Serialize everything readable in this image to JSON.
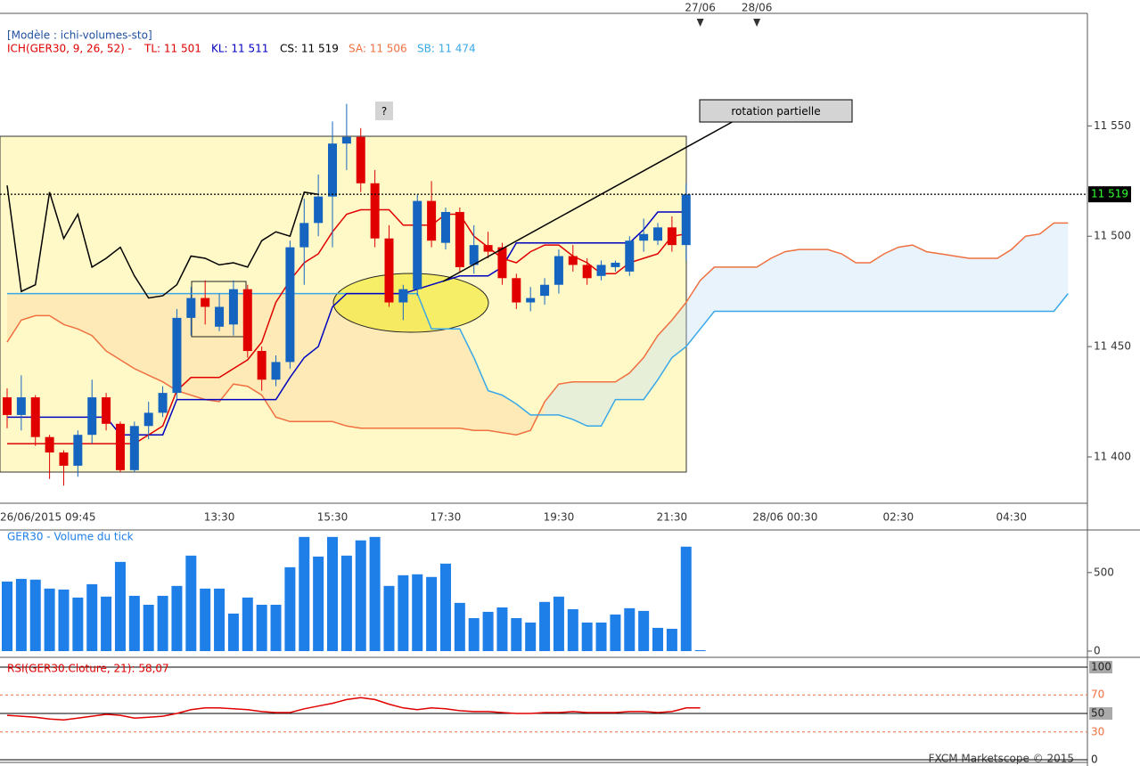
{
  "chart_data": [
    {
      "type": "candlestick",
      "title": "[Modèle : ichi-volumes-sto]",
      "subtitle": "ICH(GER30, 9, 26, 52) -",
      "categories": [
        "26/06/2015 09:45",
        null,
        null,
        null,
        null,
        null,
        null,
        null,
        null,
        null,
        null,
        null,
        null,
        null,
        null,
        "13:30",
        null,
        null,
        null,
        null,
        null,
        null,
        null,
        "15:30",
        null,
        null,
        null,
        null,
        null,
        null,
        null,
        "17:30",
        null,
        null,
        null,
        null,
        null,
        null,
        null,
        "19:30",
        null,
        null,
        null,
        null,
        null,
        null,
        null,
        "21:30",
        null,
        null,
        null,
        null,
        null,
        null,
        null,
        "28/06 00:30",
        null,
        null,
        null,
        null,
        null,
        null,
        null,
        "02:30",
        null,
        null,
        null,
        null,
        null,
        null,
        null,
        "04:30",
        null,
        null,
        null,
        null
      ],
      "top_categories": [
        null,
        null,
        null,
        null,
        null,
        null,
        null,
        null,
        null,
        null,
        null,
        null,
        null,
        null,
        null,
        null,
        null,
        null,
        null,
        null,
        null,
        null,
        null,
        null,
        null,
        null,
        null,
        null,
        null,
        null,
        null,
        null,
        null,
        null,
        null,
        null,
        null,
        null,
        null,
        null,
        null,
        null,
        null,
        null,
        null,
        null,
        null,
        null,
        null,
        "27/06",
        null,
        null,
        null,
        "28/06",
        null,
        null,
        null,
        null,
        null,
        null,
        null,
        null,
        null,
        null,
        null,
        null,
        null,
        null,
        null,
        null,
        null,
        null,
        null,
        null,
        null,
        null
      ],
      "open": [
        11427,
        11419,
        11427,
        11409,
        11402,
        11396,
        11410,
        11427,
        11415,
        11394,
        11414,
        11420,
        11429,
        11463,
        11472,
        11459,
        11460,
        11476,
        11448,
        11435,
        11443,
        11495,
        11506,
        11518,
        11542,
        11545,
        11524,
        11499,
        11470,
        11476,
        11516,
        11497,
        11511,
        11487,
        11496,
        11495,
        11481,
        11470,
        11473,
        11478,
        11491,
        11487,
        11482,
        11486,
        11484,
        11498,
        11498,
        11504,
        11496,
        null,
        null,
        null,
        null,
        null,
        null,
        null,
        null,
        null,
        null,
        null,
        null,
        null,
        null,
        null,
        null,
        null,
        null,
        null,
        null,
        null,
        null,
        null,
        null,
        null,
        null,
        null
      ],
      "high": [
        11431,
        11437,
        11428,
        11410,
        11403,
        11412,
        11435,
        11429,
        11416,
        11416,
        11425,
        11432,
        11467,
        11477,
        11480,
        11474,
        11480,
        11478,
        11450,
        11446,
        11498,
        11517,
        11528,
        11552,
        11560,
        11549,
        11530,
        11505,
        11478,
        11519,
        11525,
        11513,
        11513,
        11505,
        11502,
        11497,
        11483,
        11477,
        11481,
        11494,
        11496,
        11490,
        11489,
        11489,
        11500,
        11508,
        11506,
        11509,
        11524,
        null,
        null,
        null,
        null,
        null,
        null,
        null,
        null,
        null,
        null,
        null,
        null,
        null,
        null,
        null,
        null,
        null,
        null,
        null,
        null,
        null,
        null,
        null,
        null,
        null,
        null,
        null
      ],
      "low": [
        11413,
        11412,
        11405,
        11390,
        11387,
        11391,
        11406,
        11412,
        11393,
        11393,
        11408,
        11418,
        11426,
        11455,
        11460,
        11457,
        11455,
        11445,
        11430,
        11432,
        11440,
        11478,
        11500,
        11495,
        11530,
        11520,
        11495,
        11468,
        11462,
        11473,
        11495,
        11494,
        11484,
        11483,
        11490,
        11478,
        11467,
        11466,
        11469,
        11474,
        11484,
        11478,
        11480,
        11484,
        11482,
        11493,
        11496,
        11493,
        11489,
        null,
        null,
        null,
        null,
        null,
        null,
        null,
        null,
        null,
        null,
        null,
        null,
        null,
        null,
        null,
        null,
        null,
        null,
        null,
        null,
        null,
        null,
        null,
        null,
        null,
        null,
        null
      ],
      "close": [
        11419,
        11427,
        11409,
        11402,
        11396,
        11410,
        11427,
        11415,
        11394,
        11414,
        11420,
        11429,
        11463,
        11472,
        11468,
        11468,
        11476,
        11448,
        11435,
        11443,
        11495,
        11506,
        11518,
        11542,
        11545,
        11524,
        11499,
        11470,
        11476,
        11516,
        11498,
        11511,
        11486,
        11496,
        11493,
        11481,
        11470,
        11472,
        11478,
        11491,
        11487,
        11481,
        11487,
        11488,
        11498,
        11501,
        11504,
        11496,
        11519,
        null,
        null,
        null,
        null,
        null,
        null,
        null,
        null,
        null,
        null,
        null,
        null,
        null,
        null,
        null,
        null,
        null,
        null,
        null,
        null,
        null,
        null,
        null,
        null,
        null,
        null,
        null
      ],
      "up_color": "#1565c0",
      "down_color": "#e00000",
      "series": [
        {
          "label": "TL: 11 501",
          "color": "#e00000",
          "values": [
            11406,
            11406,
            11406,
            11406,
            11406,
            11406,
            11406,
            11406,
            11406,
            11406,
            11410,
            11414,
            11430,
            11436,
            11436,
            11436,
            11440,
            11444,
            11452,
            11470,
            11480,
            11488,
            11492,
            11502,
            11510,
            11512,
            11512,
            11512,
            11505,
            11505,
            11505,
            11510,
            11510,
            11500,
            11495,
            11490,
            11488,
            11493,
            11496,
            11496,
            11491,
            11488,
            11483,
            11483,
            11488,
            11490,
            11492,
            11500,
            11501,
            null,
            null,
            null,
            null,
            null,
            null,
            null,
            null,
            null,
            null,
            null,
            null,
            null,
            null,
            null,
            null,
            null,
            null,
            null,
            null,
            null,
            null,
            null,
            null,
            null,
            null,
            null
          ]
        },
        {
          "label": "KL: 11 511",
          "color": "#0000c0",
          "values": [
            11418,
            11418,
            11418,
            11418,
            11418,
            11418,
            11418,
            11418,
            11410,
            11410,
            11410,
            11410,
            11426,
            11426,
            11426,
            11426,
            11426,
            11426,
            11426,
            11426,
            11436,
            11445,
            11450,
            11468,
            11474,
            11474,
            11474,
            11474,
            11474,
            11476,
            11478,
            11480,
            11482,
            11482,
            11482,
            11486,
            11497,
            11497,
            11497,
            11497,
            11497,
            11497,
            11497,
            11497,
            11497,
            11503,
            11511,
            11511,
            11511,
            null,
            null,
            null,
            null,
            null,
            null,
            null,
            null,
            null,
            null,
            null,
            null,
            null,
            null,
            null,
            null,
            null,
            null,
            null,
            null,
            null,
            null,
            null,
            null,
            null,
            null,
            null
          ]
        },
        {
          "label": "CS: 11 519",
          "color": "#000000",
          "values": [
            11523,
            11475,
            11478,
            11520,
            11499,
            11510,
            11486,
            11490,
            11495,
            11482,
            11472,
            11473,
            11478,
            11491,
            11490,
            11487,
            11488,
            11486,
            11498,
            11502,
            11500,
            11520,
            11519,
            null,
            null,
            null,
            null,
            null,
            null,
            null,
            null,
            null,
            null,
            null,
            null,
            null,
            null,
            null,
            null,
            null,
            null,
            null,
            null,
            null,
            null,
            null,
            null,
            null,
            null,
            null,
            null,
            null,
            null,
            null,
            null,
            null,
            null,
            null,
            null,
            null,
            null,
            null,
            null,
            null,
            null,
            null,
            null,
            null,
            null,
            null,
            null,
            null,
            null,
            null,
            null,
            null
          ]
        },
        {
          "label": "SA: 11 506",
          "color": "#f07040",
          "values": [
            11452,
            11462,
            11464,
            11464,
            11460,
            11458,
            11455,
            11448,
            11444,
            11440,
            11437,
            11434,
            11430,
            11428,
            11426,
            11425,
            11433,
            11432,
            11428,
            11418,
            11416,
            11416,
            11416,
            11416,
            11414,
            11413,
            11413,
            11413,
            11413,
            11413,
            11413,
            11413,
            11413,
            11412,
            11412,
            11411,
            11410,
            11412,
            11425,
            11433,
            11434,
            11434,
            11434,
            11434,
            11438,
            11445,
            11455,
            11462,
            11470,
            11480,
            11486,
            11486,
            11486,
            11486,
            11490,
            11493,
            11494,
            11494,
            11494,
            11492,
            11488,
            11488,
            11492,
            11495,
            11496,
            11493,
            11492,
            11491,
            11490,
            11490,
            11490,
            11494,
            11500,
            11501,
            11506,
            11506
          ]
        },
        {
          "label": "SB: 11 474",
          "color": "#3aa8e8",
          "values": [
            11474,
            11474,
            11474,
            11474,
            11474,
            11474,
            11474,
            11474,
            11474,
            11474,
            11474,
            11474,
            11474,
            11474,
            11474,
            11474,
            11474,
            11474,
            11474,
            11474,
            11474,
            11474,
            11474,
            11474,
            11474,
            11474,
            11474,
            11474,
            11474,
            11474,
            11458,
            11458,
            11458,
            11445,
            11430,
            11428,
            11424,
            11419,
            11419,
            11419,
            11417,
            11414,
            11414,
            11426,
            11426,
            11426,
            11435,
            11445,
            11450,
            11458,
            11466,
            11466,
            11466,
            11466,
            11466,
            11466,
            11466,
            11466,
            11466,
            11466,
            11466,
            11466,
            11466,
            11466,
            11466,
            11466,
            11466,
            11466,
            11466,
            11466,
            11466,
            11466,
            11466,
            11466,
            11466,
            11474
          ]
        }
      ],
      "last_price": {
        "value": 11519,
        "label": "11 519"
      },
      "annotations": [
        "?",
        "rotation partielle"
      ],
      "ylim": [
        11379,
        11601
      ],
      "yticks": [
        {
          "value": 11400,
          "label": "11 400"
        },
        {
          "value": 11450,
          "label": "11 450"
        },
        {
          "value": 11500,
          "label": "11 500"
        },
        {
          "value": 11550,
          "label": "11 550"
        }
      ]
    },
    {
      "type": "bar",
      "title": "GER30 - Volume du tick",
      "color": "#1e7fe8",
      "values": [
        443,
        460,
        455,
        398,
        392,
        341,
        426,
        347,
        568,
        352,
        295,
        352,
        415,
        608,
        398,
        398,
        239,
        341,
        295,
        295,
        534,
        727,
        602,
        727,
        608,
        705,
        727,
        415,
        483,
        489,
        472,
        557,
        307,
        210,
        250,
        278,
        210,
        182,
        313,
        347,
        267,
        182,
        182,
        233,
        273,
        256,
        148,
        142,
        665,
        6,
        null,
        null,
        null,
        null,
        null,
        null,
        null,
        null,
        null,
        null,
        null,
        null,
        null,
        null,
        null,
        null,
        null,
        null,
        null,
        null,
        null,
        null,
        null,
        null,
        null,
        null
      ],
      "ylim": [
        0,
        760
      ],
      "yticks": [
        0,
        500
      ]
    },
    {
      "type": "line",
      "title": "RSI(GER30.Cloture, 21): 58,07",
      "color": "#e00000",
      "values": [
        48,
        47,
        46,
        44,
        43,
        45,
        47,
        49,
        48,
        45,
        46,
        47,
        50,
        54,
        56,
        56,
        55,
        54,
        52,
        51,
        51,
        55,
        58,
        61,
        65,
        67,
        65,
        60,
        56,
        54,
        56,
        55,
        53,
        52,
        52,
        51,
        50,
        50,
        51,
        51,
        52,
        51,
        51,
        51,
        52,
        52,
        51,
        52,
        56,
        56,
        null,
        null,
        null,
        null,
        null,
        null,
        null,
        null,
        null,
        null,
        null,
        null,
        null,
        null,
        null,
        null,
        null,
        null,
        null,
        null,
        null,
        null,
        null,
        null,
        null,
        null
      ],
      "ylim": [
        0,
        100
      ],
      "yticks": [
        0,
        30,
        50,
        70,
        100
      ]
    }
  ],
  "footer": "FXCM Marketscope © 2015"
}
